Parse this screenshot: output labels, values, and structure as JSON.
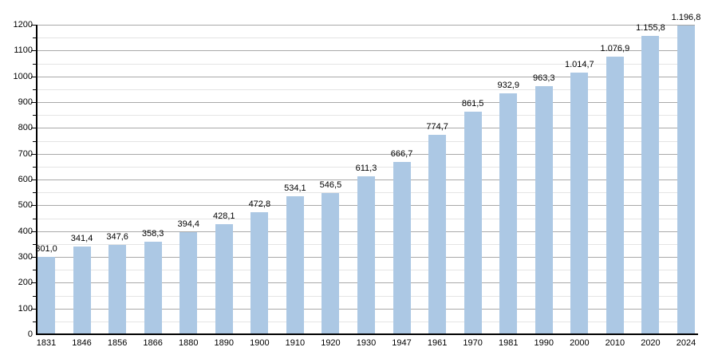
{
  "chart_data": {
    "type": "bar",
    "title": "",
    "xlabel": "",
    "ylabel": "",
    "legend": "none",
    "grid": "horizontal, major every 100 and minor every 50",
    "categories": [
      "1831",
      "1846",
      "1856",
      "1866",
      "1880",
      "1890",
      "1900",
      "1910",
      "1920",
      "1930",
      "1947",
      "1961",
      "1970",
      "1981",
      "1990",
      "2000",
      "2010",
      "2020",
      "2024"
    ],
    "values": [
      301.0,
      341.4,
      347.6,
      358.3,
      394.4,
      428.1,
      472.8,
      534.1,
      546.5,
      611.3,
      666.7,
      774.7,
      861.5,
      932.9,
      963.3,
      1014.7,
      1076.9,
      1155.8,
      1196.8
    ],
    "value_labels": [
      "301,0",
      "341,4",
      "347,6",
      "358,3",
      "394,4",
      "428,1",
      "472,8",
      "534,1",
      "546,5",
      "611,3",
      "666,7",
      "774,7",
      "861,5",
      "932,9",
      "963,3",
      "1.014,7",
      "1.076,9",
      "1.155,8",
      "1.196,8"
    ],
    "ylim": [
      0,
      1200
    ],
    "y_major_step": 100,
    "y_minor_step": 50,
    "y_tick_labels": [
      "0",
      "100",
      "200",
      "300",
      "400",
      "500",
      "600",
      "700",
      "800",
      "900",
      "1000",
      "1100",
      "1200"
    ],
    "colors": {
      "bar_fill": "#acc8e4",
      "grid_major": "#a9a9a9",
      "grid_minor": "#e4e4e4",
      "axis": "#000000",
      "text": "#000000",
      "background": "#ffffff"
    }
  }
}
